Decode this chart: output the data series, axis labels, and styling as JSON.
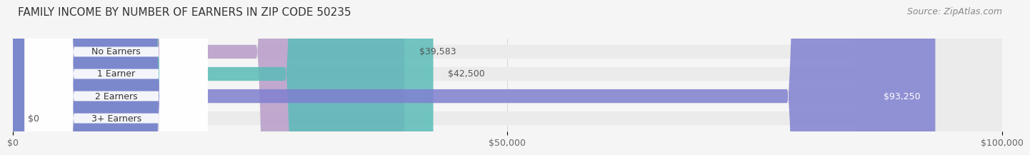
{
  "title": "FAMILY INCOME BY NUMBER OF EARNERS IN ZIP CODE 50235",
  "source": "Source: ZipAtlas.com",
  "categories": [
    "No Earners",
    "1 Earner",
    "2 Earners",
    "3+ Earners"
  ],
  "values": [
    39583,
    42500,
    93250,
    0
  ],
  "bar_colors": [
    "#b89cc8",
    "#5bbcb8",
    "#8080d0",
    "#f4a0b8"
  ],
  "label_colors": [
    "#b89cc8",
    "#5bbcb8",
    "#8080d0",
    "#f4a0b8"
  ],
  "value_labels": [
    "$39,583",
    "$42,500",
    "$93,250",
    "$0"
  ],
  "xlim": [
    0,
    100000
  ],
  "xticks": [
    0,
    50000,
    100000
  ],
  "xticklabels": [
    "$0",
    "$50,000",
    "$100,000"
  ],
  "background_color": "#f5f5f5",
  "bar_bg_color": "#ebebeb",
  "title_fontsize": 11,
  "source_fontsize": 9,
  "tick_fontsize": 9,
  "label_fontsize": 9,
  "value_fontsize": 9
}
